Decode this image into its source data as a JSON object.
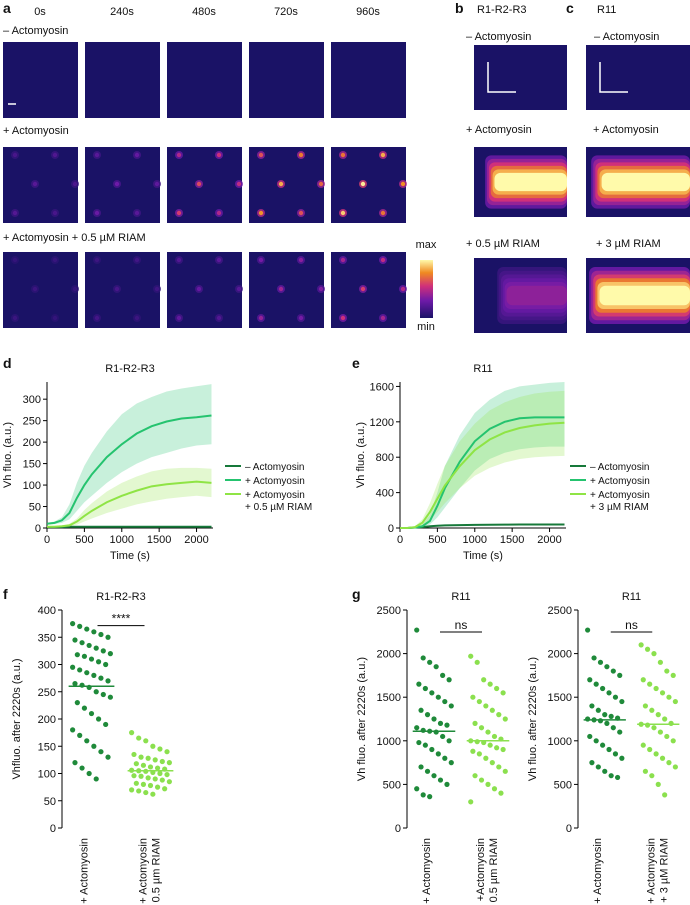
{
  "panel_labels": [
    "a",
    "b",
    "c",
    "d",
    "e",
    "f",
    "g"
  ],
  "panel_a": {
    "time_labels": [
      "0s",
      "240s",
      "480s",
      "720s",
      "960s"
    ],
    "conditions": [
      "– Actomyosin",
      "+ Actomyosin",
      "+ Actomyosin + 0.5 µM RIAM"
    ]
  },
  "colorbar": {
    "max": "max",
    "min": "min"
  },
  "panel_b": {
    "title": "R1-R2-R3",
    "conditions": [
      "– Actomyosin",
      "+ Actomyosin",
      "+ 0.5 µM RIAM"
    ]
  },
  "panel_c": {
    "title": "R11",
    "conditions": [
      "– Actomyosin",
      "+ Actomyosin",
      "+ 3 µM RIAM"
    ]
  },
  "chart_data": [
    {
      "type": "line",
      "title": "R1-R2-R3",
      "xlabel": "Time (s)",
      "ylabel": "Vh fluo. (a.u.)",
      "x": [
        0,
        100,
        200,
        300,
        400,
        500,
        600,
        800,
        1000,
        1200,
        1400,
        1600,
        1800,
        2000,
        2200
      ],
      "xlim": [
        0,
        2220
      ],
      "xticks": [
        0,
        500,
        1000,
        1500,
        2000
      ],
      "ylim": [
        0,
        340
      ],
      "yticks": [
        0,
        50,
        100,
        150,
        200,
        250,
        300
      ],
      "series": [
        {
          "name": "– Actomyosin",
          "color": "#17793a",
          "values": [
            2,
            2,
            2,
            3,
            3,
            3,
            3,
            3,
            3,
            3,
            3,
            3,
            3,
            3,
            3
          ]
        },
        {
          "name": "+ Actomyosin",
          "color": "#25c36f",
          "values": [
            10,
            12,
            18,
            35,
            70,
            100,
            125,
            165,
            195,
            220,
            237,
            248,
            255,
            258,
            262
          ],
          "lower": [
            8,
            9,
            12,
            20,
            40,
            60,
            75,
            105,
            130,
            150,
            165,
            175,
            185,
            192,
            195
          ],
          "upper": [
            12,
            15,
            25,
            55,
            105,
            145,
            175,
            225,
            265,
            290,
            305,
            318,
            325,
            330,
            335
          ]
        },
        {
          "name": "+ Actomyosin\n+ 0.5 µM RIAM",
          "color": "#8fe445",
          "values": [
            3,
            3,
            4,
            6,
            15,
            28,
            40,
            60,
            75,
            87,
            97,
            102,
            105,
            108,
            105
          ],
          "lower": [
            2,
            2,
            3,
            4,
            8,
            15,
            22,
            35,
            45,
            55,
            62,
            68,
            72,
            75,
            72
          ],
          "upper": [
            5,
            5,
            6,
            10,
            22,
            42,
            58,
            85,
            105,
            120,
            132,
            138,
            140,
            140,
            138
          ]
        }
      ]
    },
    {
      "type": "line",
      "title": "R11",
      "xlabel": "Time (s)",
      "ylabel": "Vh fluo. (a.u.)",
      "x": [
        0,
        100,
        200,
        300,
        400,
        500,
        600,
        800,
        1000,
        1200,
        1400,
        1600,
        1800,
        2000,
        2200
      ],
      "xlim": [
        0,
        2220
      ],
      "xticks": [
        0,
        500,
        1000,
        1500,
        2000
      ],
      "ylim": [
        0,
        1650
      ],
      "yticks": [
        0,
        400,
        800,
        1200,
        1600
      ],
      "series": [
        {
          "name": "– Actomyosin",
          "color": "#17793a",
          "values": [
            0,
            0,
            5,
            10,
            20,
            25,
            30,
            33,
            35,
            37,
            38,
            39,
            40,
            40,
            40
          ]
        },
        {
          "name": "+ Actomyosin",
          "color": "#25c36f",
          "values": [
            0,
            0,
            5,
            20,
            80,
            250,
            450,
            750,
            980,
            1120,
            1200,
            1240,
            1250,
            1250,
            1250
          ],
          "lower": [
            0,
            0,
            2,
            10,
            40,
            120,
            230,
            450,
            650,
            780,
            850,
            890,
            910,
            920,
            920
          ],
          "upper": [
            0,
            0,
            10,
            40,
            150,
            400,
            700,
            1050,
            1300,
            1450,
            1550,
            1600,
            1620,
            1640,
            1650
          ]
        },
        {
          "name": "+ Actomyosin\n+ 3 µM RIAM",
          "color": "#8fe445",
          "values": [
            0,
            0,
            10,
            60,
            180,
            330,
            480,
            700,
            880,
            1000,
            1080,
            1130,
            1160,
            1180,
            1190
          ],
          "lower": [
            0,
            0,
            5,
            30,
            90,
            180,
            280,
            450,
            590,
            680,
            740,
            780,
            800,
            810,
            815
          ],
          "upper": [
            0,
            0,
            20,
            100,
            280,
            500,
            700,
            980,
            1180,
            1330,
            1420,
            1480,
            1520,
            1540,
            1550
          ]
        }
      ]
    },
    {
      "type": "strip",
      "title": "R1-R2-R3",
      "ylabel": "Vhfluo. after 2220s (a.u.)",
      "annotation": "****",
      "categories": [
        "+ Actomyosin",
        "+ Actomyosin\n+ 0.5 µm RIAM"
      ],
      "ylim": [
        0,
        400
      ],
      "yticks": [
        0,
        50,
        100,
        150,
        200,
        250,
        300,
        350,
        400
      ],
      "series": [
        {
          "color": "#1f8a3a",
          "median": 260,
          "values": [
            375,
            370,
            365,
            360,
            355,
            350,
            345,
            340,
            335,
            330,
            325,
            320,
            318,
            315,
            310,
            305,
            300,
            295,
            290,
            285,
            280,
            275,
            270,
            265,
            262,
            258,
            250,
            245,
            240,
            230,
            220,
            210,
            200,
            190,
            180,
            170,
            160,
            150,
            140,
            130,
            120,
            110,
            100,
            90
          ]
        },
        {
          "color": "#8be04e",
          "median": 105,
          "values": [
            175,
            165,
            160,
            150,
            145,
            140,
            135,
            130,
            128,
            125,
            122,
            120,
            118,
            115,
            112,
            110,
            108,
            106,
            105,
            104,
            102,
            100,
            98,
            96,
            95,
            92,
            90,
            88,
            85,
            82,
            80,
            78,
            75,
            72,
            70,
            68,
            65,
            62
          ]
        }
      ]
    },
    {
      "type": "strip",
      "title": "R11",
      "ylabel": "Vh fluo. after 2220s (a.u.)",
      "annotation": "ns",
      "categories": [
        "+ Actomyosin",
        "+Actomyosin\n+ 0.5 µm RIAM"
      ],
      "ylim": [
        0,
        2500
      ],
      "yticks": [
        0,
        500,
        1000,
        1500,
        2000,
        2500
      ],
      "series": [
        {
          "color": "#1f8a3a",
          "median": 1110,
          "values": [
            2270,
            1950,
            1900,
            1850,
            1750,
            1700,
            1650,
            1600,
            1550,
            1500,
            1450,
            1400,
            1350,
            1300,
            1250,
            1200,
            1180,
            1150,
            1120,
            1110,
            1100,
            1050,
            1000,
            980,
            950,
            900,
            850,
            800,
            750,
            700,
            650,
            600,
            550,
            500,
            450,
            380,
            360
          ]
        },
        {
          "color": "#8be04e",
          "median": 1000,
          "values": [
            1970,
            1900,
            1700,
            1650,
            1600,
            1550,
            1500,
            1450,
            1400,
            1350,
            1300,
            1250,
            1200,
            1150,
            1100,
            1050,
            1020,
            1000,
            990,
            980,
            950,
            920,
            900,
            880,
            850,
            800,
            750,
            700,
            650,
            600,
            550,
            500,
            450,
            400,
            300
          ]
        }
      ]
    },
    {
      "type": "strip",
      "title": "R11",
      "ylabel": "Vh fluo. after 2220s (a.u.)",
      "annotation": "ns",
      "categories": [
        "+ Actomyosin",
        "+ Actomyosin\n+ 3 µM RIAM"
      ],
      "ylim": [
        0,
        2500
      ],
      "yticks": [
        0,
        500,
        1000,
        1500,
        2000,
        2500
      ],
      "series": [
        {
          "color": "#1f8a3a",
          "median": 1240,
          "values": [
            2270,
            1950,
            1900,
            1850,
            1800,
            1750,
            1700,
            1650,
            1600,
            1550,
            1500,
            1450,
            1400,
            1350,
            1300,
            1280,
            1260,
            1250,
            1240,
            1230,
            1200,
            1150,
            1100,
            1050,
            1000,
            950,
            900,
            850,
            800,
            750,
            700,
            650,
            600,
            580
          ]
        },
        {
          "color": "#8be04e",
          "median": 1190,
          "values": [
            2100,
            2050,
            2000,
            1900,
            1800,
            1750,
            1700,
            1650,
            1600,
            1550,
            1500,
            1450,
            1400,
            1350,
            1300,
            1250,
            1200,
            1190,
            1180,
            1150,
            1100,
            1050,
            1000,
            950,
            900,
            850,
            800,
            750,
            700,
            650,
            600,
            500,
            380
          ]
        }
      ]
    }
  ]
}
